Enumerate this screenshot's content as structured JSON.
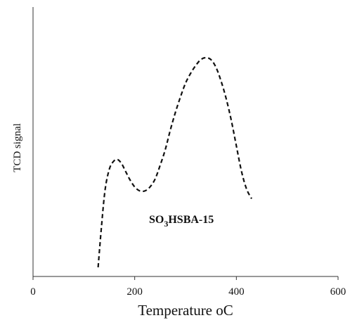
{
  "chart_data": {
    "type": "line",
    "title": "",
    "xlabel": "Temperature ",
    "xlabel_unit": "oC",
    "ylabel": "TCD signal",
    "xlim": [
      0,
      600
    ],
    "x_ticks": [
      "0",
      "200",
      "400",
      "600"
    ],
    "y_ticks": [],
    "grid": false,
    "legend": "none",
    "annotation": {
      "text_main": "SO",
      "text_sub": "3",
      "text_rest": "HSBA-15"
    },
    "series": [
      {
        "line_style": "dashed",
        "color": "#111111",
        "x": [
          128,
          135,
          142,
          150,
          158,
          166,
          174,
          182,
          190,
          200,
          210,
          220,
          230,
          240,
          250,
          260,
          270,
          280,
          290,
          300,
          310,
          320,
          330,
          340,
          350,
          360,
          370,
          380,
          390,
          400,
          410,
          420,
          430
        ],
        "y": [
          0.0,
          0.22,
          0.4,
          0.5,
          0.54,
          0.55,
          0.53,
          0.49,
          0.45,
          0.41,
          0.39,
          0.39,
          0.41,
          0.45,
          0.52,
          0.6,
          0.7,
          0.79,
          0.87,
          0.94,
          0.99,
          1.03,
          1.06,
          1.07,
          1.06,
          1.02,
          0.95,
          0.86,
          0.75,
          0.62,
          0.49,
          0.4,
          0.35
        ]
      }
    ]
  }
}
